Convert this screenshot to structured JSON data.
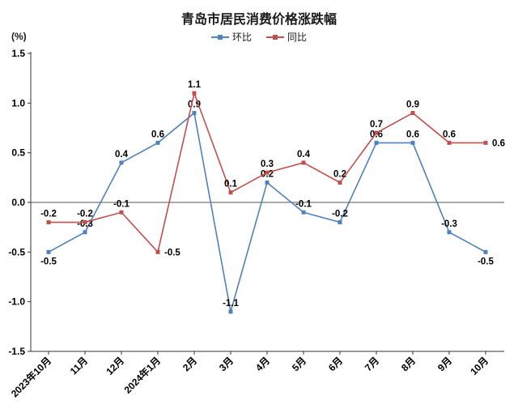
{
  "chart_data": {
    "type": "line",
    "title": "青岛市居民消费价格涨跌幅",
    "unit_label": "(%)",
    "categories": [
      "2023年10月",
      "11月",
      "12月",
      "2024年1月",
      "2月",
      "3月",
      "4月",
      "5月",
      "6月",
      "7月",
      "8月",
      "9月",
      "10月"
    ],
    "series": [
      {
        "name": "环比",
        "color": "#4f81bd",
        "values": [
          -0.5,
          -0.3,
          0.4,
          0.6,
          0.9,
          -1.1,
          0.2,
          -0.1,
          -0.2,
          0.6,
          0.6,
          -0.3,
          -0.5
        ],
        "label_side": [
          "below",
          "above",
          "above",
          "above",
          "above",
          "above",
          "above",
          "above",
          "above",
          "above",
          "above",
          "above",
          "below"
        ]
      },
      {
        "name": "同比",
        "color": "#c0504d",
        "values": [
          -0.2,
          -0.2,
          -0.1,
          -0.5,
          1.1,
          0.1,
          0.3,
          0.4,
          0.2,
          0.7,
          0.9,
          0.6,
          0.6
        ],
        "label_side": [
          "above",
          "above",
          "above",
          "right",
          "above",
          "above",
          "above",
          "above",
          "above",
          "above",
          "above",
          "above",
          "right"
        ]
      }
    ],
    "ylim": [
      -1.5,
      1.5
    ],
    "ytick_step": 0.5,
    "legend_position": "top",
    "grid": false,
    "axis_color": "#333333",
    "zero_line_color": "#555555",
    "label_color": "#000000"
  }
}
